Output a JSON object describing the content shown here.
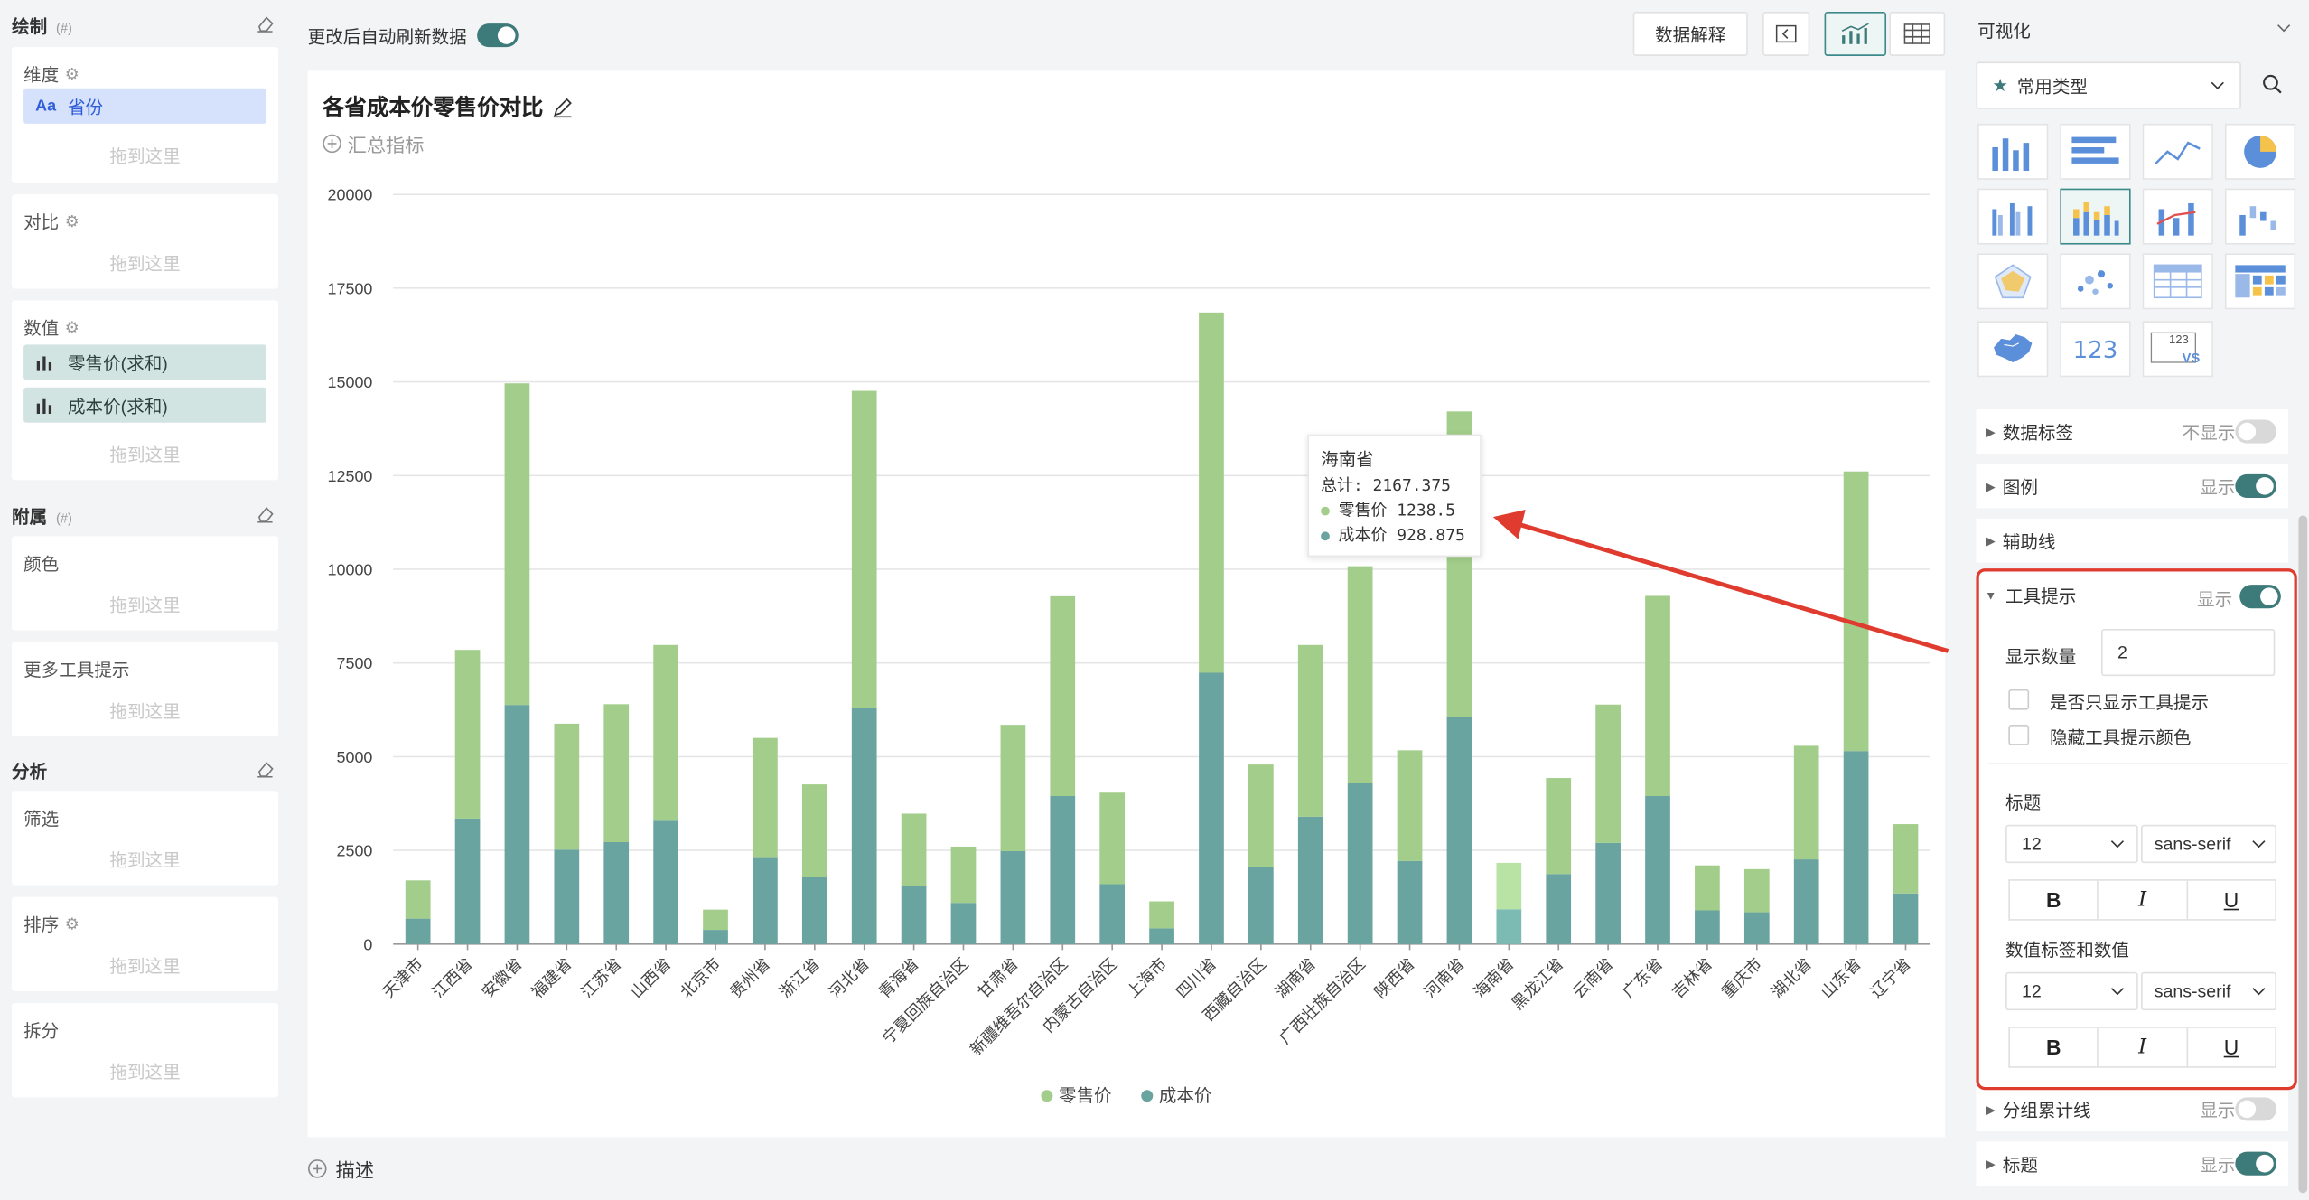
{
  "left": {
    "draw_title": "绘制",
    "hint": "(#)",
    "dimension": {
      "label": "维度",
      "field": "省份",
      "field_type": "Aa",
      "drop": "拖到这里"
    },
    "compare": {
      "label": "对比",
      "drop": "拖到这里"
    },
    "values": {
      "label": "数值",
      "fields": [
        "零售价(求和)",
        "成本价(求和)"
      ],
      "drop": "拖到这里"
    },
    "attach_title": "附属",
    "color": {
      "label": "颜色",
      "drop": "拖到这里"
    },
    "more_tooltip": {
      "label": "更多工具提示",
      "drop": "拖到这里"
    },
    "analysis_title": "分析",
    "filter": {
      "label": "筛选",
      "drop": "拖到这里"
    },
    "sort": {
      "label": "排序",
      "drop": "拖到这里"
    },
    "split": {
      "label": "拆分",
      "drop": "拖到这里"
    }
  },
  "toolbar": {
    "auto_refresh_label": "更改后自动刷新数据",
    "auto_refresh_on": true,
    "data_explain": "数据解释"
  },
  "chart": {
    "title": "各省成本价零售价对比",
    "summary": "汇总指标",
    "description": "描述"
  },
  "tooltip": {
    "province": "海南省",
    "total": "总计: 2167.375",
    "retail": "零售价 1238.5",
    "cost": "成本价 928.875"
  },
  "chart_data": {
    "type": "bar",
    "stacked": true,
    "title": "各省成本价零售价对比",
    "categories": [
      "天津市",
      "江西省",
      "安徽省",
      "福建省",
      "江苏省",
      "山西省",
      "北京市",
      "贵州省",
      "浙江省",
      "河北省",
      "青海省",
      "宁夏回族自治区",
      "甘肃省",
      "新疆维吾尔自治区",
      "内蒙古自治区",
      "上海市",
      "四川省",
      "西藏自治区",
      "湖南省",
      "广西壮族自治区",
      "陕西省",
      "河南省",
      "海南省",
      "黑龙江省",
      "云南省",
      "广东省",
      "吉林省",
      "重庆市",
      "湖北省",
      "山东省",
      "辽宁省"
    ],
    "series": [
      {
        "name": "成本价",
        "color": "#6aa4a0",
        "values": [
          680,
          3350,
          6380,
          2520,
          2720,
          3290,
          380,
          2320,
          1800,
          6300,
          1550,
          1100,
          2480,
          3950,
          1600,
          420,
          7240,
          2060,
          3400,
          4300,
          2220,
          6060,
          928.875,
          1870,
          2700,
          3950,
          900,
          850,
          2260,
          5150,
          1350
        ]
      },
      {
        "name": "零售价",
        "color": "#a2cd8a",
        "values": [
          1020,
          4500,
          8580,
          3360,
          3680,
          4690,
          540,
          3180,
          2460,
          8460,
          1930,
          1500,
          3370,
          5330,
          2440,
          720,
          9610,
          2730,
          4580,
          5780,
          2950,
          8150,
          1238.5,
          2560,
          3690,
          5340,
          1200,
          1150,
          3030,
          7460,
          1850
        ]
      }
    ],
    "ylim": [
      0,
      20000
    ],
    "yticks": [
      0,
      2500,
      5000,
      7500,
      10000,
      12500,
      15000,
      17500,
      20000
    ],
    "highlight": "海南省",
    "legend": [
      "零售价",
      "成本价"
    ],
    "legend_position": "bottom",
    "grid": true
  },
  "right": {
    "header": "可视化",
    "chart_category": "常用类型",
    "number_tile": "123",
    "kpi_tile": "123",
    "vs_tile": "VS",
    "rows": {
      "data_label": "数据标签",
      "data_label_state": "不显示",
      "legend": "图例",
      "legend_state": "显示",
      "aux_line": "辅助线",
      "tooltip": "工具提示",
      "tooltip_state": "显示",
      "group_sum": "分组累计线",
      "group_sum_state": "显示",
      "title": "标题",
      "title_state": "显示"
    },
    "tooltip_panel": {
      "count_label": "显示数量",
      "count_value": "2",
      "only_tooltip": "是否只显示工具提示",
      "hide_color": "隐藏工具提示颜色",
      "title_label": "标题",
      "title_size": "12",
      "title_font": "sans-serif",
      "value_label": "数值标签和数值",
      "value_size": "12",
      "value_font": "sans-serif",
      "bold": "B",
      "italic": "I",
      "underline": "U"
    }
  }
}
